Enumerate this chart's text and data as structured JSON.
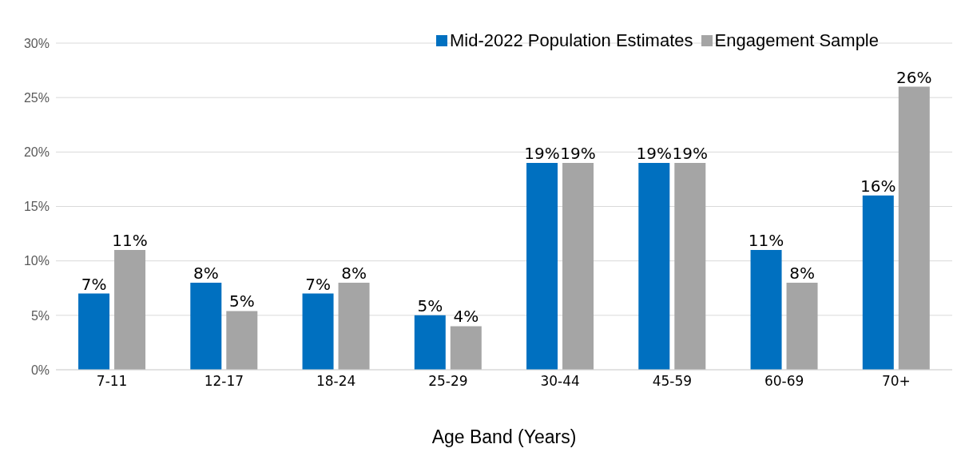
{
  "chart_data": {
    "type": "bar",
    "xlabel": "Age Band (Years)",
    "categories": [
      "7-11",
      "12-17",
      "18-24",
      "25-29",
      "30-44",
      "45-59",
      "60-69",
      "70+"
    ],
    "series": [
      {
        "name": "Mid-2022 Population Estimates",
        "color": "#0070c0",
        "values": [
          7,
          8,
          7,
          5,
          19,
          19,
          11,
          16
        ],
        "value_labels": [
          "7%",
          "8%",
          "7%",
          "5%",
          "19%",
          "19%",
          "11%",
          "16%"
        ]
      },
      {
        "name": "Engagement Sample",
        "color": "#a5a5a5",
        "values": [
          11,
          5.4,
          8,
          4,
          19,
          19,
          8,
          26
        ],
        "value_labels": [
          "11%",
          "5%",
          "8%",
          "4%",
          "19%",
          "19%",
          "8%",
          "26%"
        ]
      }
    ],
    "ylim": [
      0,
      30
    ],
    "yticks": [
      {
        "value": 0,
        "label": "0%"
      },
      {
        "value": 5,
        "label": "5%"
      },
      {
        "value": 10,
        "label": "10%"
      },
      {
        "value": 15,
        "label": "15%"
      },
      {
        "value": 20,
        "label": "20%"
      },
      {
        "value": 25,
        "label": "25%"
      },
      {
        "value": 30,
        "label": "30%"
      }
    ],
    "grid": "y",
    "legend": "top right"
  }
}
